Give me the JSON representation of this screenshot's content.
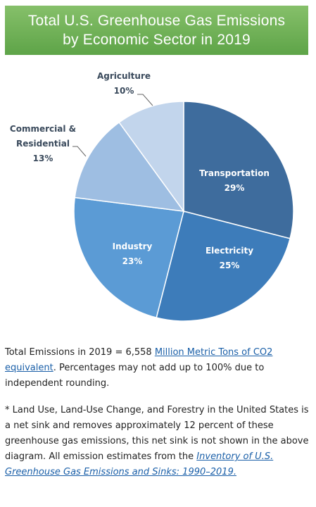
{
  "header": {
    "title_line1": "Total U.S. Greenhouse Gas Emissions",
    "title_line2": "by Economic Sector in 2019"
  },
  "chart_data": {
    "type": "pie",
    "title": "Total U.S. Greenhouse Gas Emissions by Economic Sector in 2019",
    "slices": [
      {
        "label_lines": [
          "Transportation"
        ],
        "value": 29,
        "value_label": "29%",
        "color": "#3e6c9d",
        "label_inside": true,
        "label_color": "#ffffff"
      },
      {
        "label_lines": [
          "Electricity"
        ],
        "value": 25,
        "value_label": "25%",
        "color": "#3d7cba",
        "label_inside": true,
        "label_color": "#ffffff"
      },
      {
        "label_lines": [
          "Industry"
        ],
        "value": 23,
        "value_label": "23%",
        "color": "#5b9bd5",
        "label_inside": true,
        "label_color": "#ffffff"
      },
      {
        "label_lines": [
          "Commercial &",
          "Residential"
        ],
        "value": 13,
        "value_label": "13%",
        "color": "#9ebee2",
        "label_inside": false,
        "label_color": "#3a4a5c"
      },
      {
        "label_lines": [
          "Agriculture"
        ],
        "value": 10,
        "value_label": "10%",
        "color": "#c2d5ec",
        "label_inside": false,
        "label_color": "#3a4a5c"
      }
    ]
  },
  "notes": {
    "total_prefix": "Total Emissions in 2019 = 6,558 ",
    "total_link": "Million Metric Tons of CO2 equivalent",
    "total_suffix": ". Percentages may not add up to 100% due to independent rounding.",
    "footnote_prefix": "* Land Use, Land-Use Change, and Forestry in the United States is a net sink and removes approximately 12 percent of these greenhouse gas emissions, this net sink is not shown in the above diagram. All emission estimates from the ",
    "footnote_link": "Inventory of U.S. Greenhouse Gas Emissions and Sinks: 1990–2019.",
    "footnote_suffix": ""
  }
}
